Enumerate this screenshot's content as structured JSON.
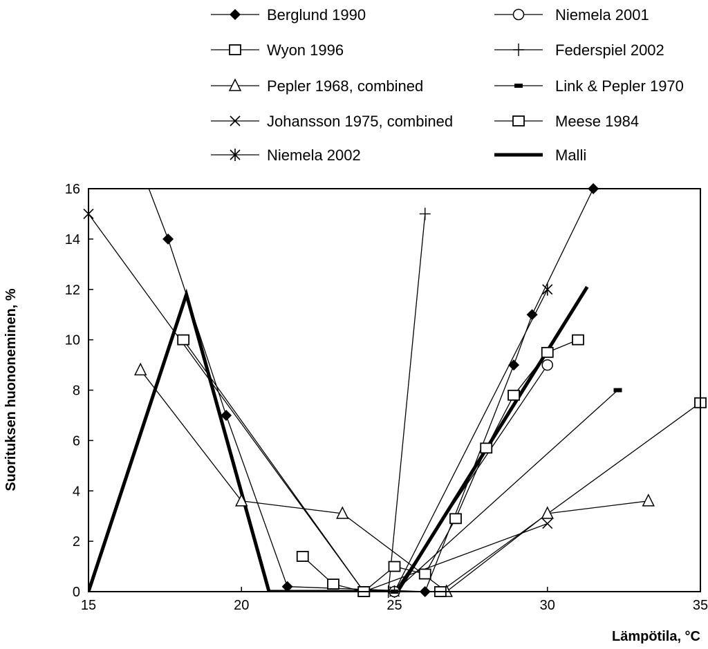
{
  "chart_data": {
    "type": "line",
    "xlabel": "Lämpötila, °C",
    "ylabel": "Suorituksen huononeminen, %",
    "xlim": [
      15,
      35
    ],
    "ylim": [
      0,
      16
    ],
    "xticks": [
      "15",
      "20",
      "25",
      "30",
      "35"
    ],
    "yticks": [
      "0",
      "2",
      "4",
      "6",
      "8",
      "10",
      "12",
      "14",
      "16"
    ],
    "grid": false,
    "legend": "top, two columns",
    "series": [
      {
        "name": "Berglund 1990",
        "marker": "diamond-filled",
        "line": "thin",
        "x": [
          16.5,
          17.6,
          19.5,
          21.5,
          26.0,
          28.9,
          29.5,
          31.5,
          32.0
        ],
        "y": [
          17.5,
          14,
          7,
          0.2,
          0,
          9,
          11,
          16,
          17
        ]
      },
      {
        "name": "Wyon 1996",
        "marker": "square-open",
        "line": "thin",
        "x": [
          22.0,
          23.0,
          24.0,
          25.0,
          26.0,
          27.0,
          28.0,
          28.9,
          30.0,
          31.0
        ],
        "y": [
          1.4,
          0.3,
          0,
          1.0,
          0.7,
          2.9,
          5.7,
          7.8,
          9.5,
          10.0
        ]
      },
      {
        "name": "Pepler 1968, combined",
        "marker": "triangle-open",
        "line": "thin",
        "x": [
          16.7,
          20.0,
          23.3,
          26.7,
          30.0,
          33.3
        ],
        "y": [
          8.8,
          3.6,
          3.1,
          0,
          3.1,
          3.6
        ]
      },
      {
        "name": "Johansson 1975, combined",
        "marker": "x",
        "line": "thin",
        "x": [
          15.0,
          24.0,
          30.0
        ],
        "y": [
          15.0,
          0,
          2.7
        ]
      },
      {
        "name": "Niemela 2002",
        "marker": "asterisk",
        "line": "thin",
        "x": [
          25.0,
          30.0
        ],
        "y": [
          0,
          12.0
        ]
      },
      {
        "name": "Niemela 2001",
        "marker": "circle-open",
        "line": "thin",
        "x": [
          25.0,
          30.0
        ],
        "y": [
          0,
          9.0
        ]
      },
      {
        "name": "Federspiel 2002",
        "marker": "plus",
        "line": "thin",
        "x": [
          24.8,
          26.0
        ],
        "y": [
          0,
          15.0
        ]
      },
      {
        "name": "Link & Pepler 1970",
        "marker": "dash-filled",
        "line": "thin",
        "x": [
          25.0,
          32.3
        ],
        "y": [
          0,
          8.0
        ]
      },
      {
        "name": "Meese 1984",
        "marker": "square-open",
        "line": "thin",
        "x": [
          18.1,
          24.0,
          26.5,
          35.0
        ],
        "y": [
          10.0,
          0,
          0,
          7.5
        ]
      },
      {
        "name": "Malli",
        "marker": "none",
        "line": "thick",
        "x": [
          15.0,
          18.2,
          20.9,
          25.1,
          31.3
        ],
        "y": [
          0,
          11.8,
          0,
          0,
          12.1
        ]
      }
    ]
  }
}
